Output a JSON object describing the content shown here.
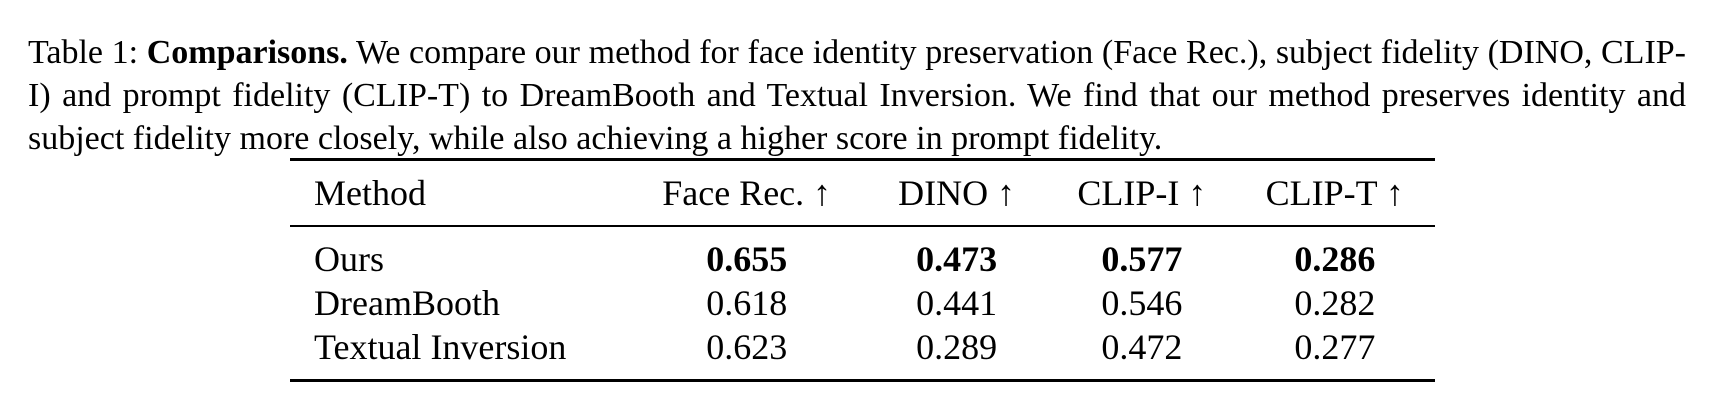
{
  "caption": {
    "label": "Table 1:",
    "title": "Comparisons.",
    "text": "We compare our method for face identity preservation (Face Rec.), subject fidelity (DINO, CLIP-I) and prompt fidelity (CLIP-T) to DreamBooth and Textual Inversion. We find that our method preserves identity and subject fidelity more closely, while also achieving a higher score in prompt fidelity."
  },
  "table": {
    "headers": [
      "Method",
      "Face Rec. ↑",
      "DINO ↑",
      "CLIP-I ↑",
      "CLIP-T ↑"
    ],
    "rows": [
      {
        "method": "Ours",
        "face_rec": "0.655",
        "dino": "0.473",
        "clip_i": "0.577",
        "clip_t": "0.286",
        "bold": true
      },
      {
        "method": "DreamBooth",
        "face_rec": "0.618",
        "dino": "0.441",
        "clip_i": "0.546",
        "clip_t": "0.282",
        "bold": false
      },
      {
        "method": "Textual Inversion",
        "face_rec": "0.623",
        "dino": "0.289",
        "clip_i": "0.472",
        "clip_t": "0.277",
        "bold": false
      }
    ]
  }
}
